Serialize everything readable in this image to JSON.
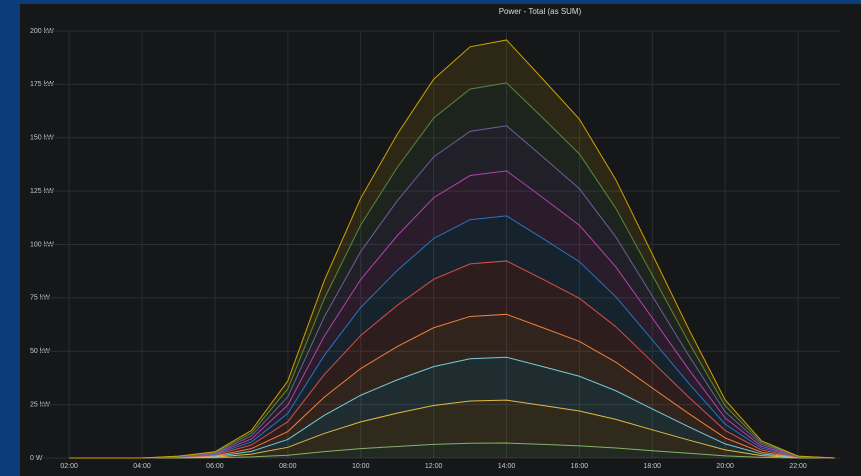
{
  "chart_data": {
    "type": "stacked-area",
    "title": "Power - Total (as SUM)",
    "x": [
      2,
      3,
      4,
      5,
      6,
      7,
      8,
      9,
      10,
      11,
      12,
      13,
      14,
      15,
      16,
      17,
      18,
      19,
      20,
      21,
      22,
      23
    ],
    "xlim": [
      1.2,
      23.15
    ],
    "xticks": [
      {
        "value": 2,
        "label": "02:00"
      },
      {
        "value": 4,
        "label": "04:00"
      },
      {
        "value": 6,
        "label": "06:00"
      },
      {
        "value": 8,
        "label": "08:00"
      },
      {
        "value": 10,
        "label": "10:00"
      },
      {
        "value": 12,
        "label": "12:00"
      },
      {
        "value": 14,
        "label": "14:00"
      },
      {
        "value": 16,
        "label": "16:00"
      },
      {
        "value": 18,
        "label": "18:00"
      },
      {
        "value": 20,
        "label": "20:00"
      },
      {
        "value": 22,
        "label": "22:00"
      }
    ],
    "ylim": [
      0,
      200
    ],
    "yticks": [
      {
        "value": 0,
        "label": "0 W"
      },
      {
        "value": 25,
        "label": "25 kW"
      },
      {
        "value": 50,
        "label": "50 kW"
      },
      {
        "value": 75,
        "label": "75 kW"
      },
      {
        "value": 100,
        "label": "100 kW"
      },
      {
        "value": 125,
        "label": "125 kW"
      },
      {
        "value": 150,
        "label": "150 kW"
      },
      {
        "value": 175,
        "label": "175 kW"
      },
      {
        "value": 200,
        "label": "200 kW"
      }
    ],
    "grid": true,
    "series": [
      {
        "color": "#7EB26D",
        "values": [
          0,
          0,
          0,
          0,
          0.1,
          0.5,
          1.3,
          3,
          4.4,
          5.4,
          6.4,
          6.9,
          7,
          6.4,
          5.7,
          4.7,
          3.4,
          2.2,
          1,
          0.3,
          0,
          0
        ]
      },
      {
        "color": "#EAB839",
        "values": [
          0,
          0,
          0,
          0.1,
          0.3,
          1.3,
          3.7,
          8.5,
          12.5,
          15.6,
          18.2,
          19.8,
          20.1,
          18.2,
          16.3,
          13.4,
          9.8,
          6.2,
          2.8,
          0.8,
          0.1,
          0
        ]
      },
      {
        "color": "#6ED0E0",
        "values": [
          0,
          0,
          0,
          0.1,
          0.3,
          1.3,
          3.7,
          8.5,
          12.5,
          15.6,
          18.2,
          19.8,
          20.1,
          18.2,
          16.3,
          13.4,
          9.8,
          6.2,
          2.8,
          0.8,
          0.1,
          0
        ]
      },
      {
        "color": "#EF843C",
        "values": [
          0,
          0,
          0,
          0.1,
          0.3,
          1.3,
          3.7,
          8.5,
          12.5,
          15.6,
          18.2,
          19.8,
          20.1,
          18.2,
          16.3,
          13.4,
          9.8,
          6.2,
          2.8,
          0.8,
          0.1,
          0
        ]
      },
      {
        "color": "#E24D42",
        "values": [
          0,
          0,
          0,
          0.1,
          0.4,
          1.7,
          4.6,
          10.6,
          15.5,
          19.3,
          22.7,
          24.6,
          25,
          22.7,
          20.2,
          16.6,
          12.2,
          7.7,
          3.5,
          1,
          0.1,
          0
        ]
      },
      {
        "color": "#1F78C1",
        "values": [
          0,
          0,
          0,
          0.1,
          0.3,
          1.4,
          3.9,
          9,
          13.1,
          16.3,
          19.1,
          20.7,
          21.1,
          19.1,
          17.1,
          14,
          10.3,
          6.5,
          2.9,
          0.9,
          0.1,
          0
        ]
      },
      {
        "color": "#BA43A9",
        "values": [
          0,
          0,
          0,
          0.1,
          0.3,
          1.4,
          3.9,
          9,
          13.1,
          16.3,
          19.1,
          20.7,
          21.1,
          19.1,
          17.1,
          14,
          10.3,
          6.5,
          2.9,
          0.9,
          0.1,
          0
        ]
      },
      {
        "color": "#705DA0",
        "values": [
          0,
          0,
          0,
          0.1,
          0.3,
          1.4,
          3.9,
          9,
          13.1,
          16.3,
          19.1,
          20.7,
          21.1,
          19.1,
          17.1,
          14,
          10.3,
          6.5,
          2.9,
          0.9,
          0.1,
          0
        ]
      },
      {
        "color": "#508642",
        "values": [
          0,
          0,
          0,
          0.1,
          0.3,
          1.3,
          3.7,
          8.5,
          12.5,
          15.6,
          18.2,
          19.8,
          20.1,
          18.2,
          16.3,
          13.4,
          9.8,
          6.2,
          2.8,
          0.8,
          0.1,
          0
        ]
      },
      {
        "color": "#CCA300",
        "values": [
          0,
          0,
          0,
          0.1,
          0.3,
          1.3,
          3.7,
          8.5,
          12.5,
          15.6,
          18.2,
          19.8,
          20.1,
          18.2,
          16.3,
          13.4,
          9.8,
          6.2,
          2.8,
          0.8,
          0.1,
          0
        ]
      }
    ]
  }
}
